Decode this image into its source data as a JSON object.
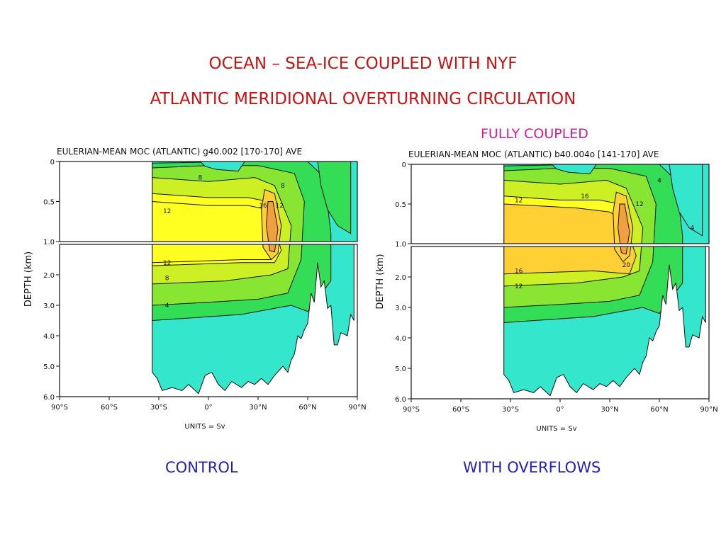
{
  "header": {
    "title": "OCEAN – SEA-ICE COUPLED WITH NYF",
    "subtitle": "ATLANTIC MERIDIONAL OVERTURNING CIRCULATION",
    "right_note": "FULLY COUPLED"
  },
  "colors": {
    "title": "#cc1111",
    "note": "#e0188c",
    "caption": "#2222b8",
    "band_cyan": "#33e6cc",
    "band_green": "#33dd55",
    "band_lightgreen": "#88e633",
    "band_yellowgreen": "#ccf024",
    "band_yellow": "#ffff22",
    "band_gold": "#ffd033",
    "band_orange": "#f0a040"
  },
  "captions": {
    "left": "CONTROL",
    "right": "WITH OVERFLOWS"
  },
  "chart_data": [
    {
      "type": "heatmap",
      "title": "EULERIAN-MEAN MOC (ATLANTIC) g40.002 [170-170] AVE",
      "xlabel": "",
      "ylabel": "DEPTH (km)",
      "units_note": "UNITS = Sv",
      "x_ticks": [
        "90°S",
        "60°S",
        "30°S",
        "0°",
        "30°N",
        "60°N",
        "90°N"
      ],
      "y_ticks_upper": [
        "0",
        "0.5",
        "1.0"
      ],
      "y_ticks_lower": [
        "1.0",
        "2.0",
        "3.0",
        "4.0",
        "5.0",
        "6.0"
      ],
      "xlim": [
        -90,
        90
      ],
      "ylim": [
        6.0,
        0
      ],
      "contour_levels": [
        -4,
        0,
        4,
        8,
        12,
        16
      ],
      "contour_labels": [
        {
          "text": "8",
          "lat": -5,
          "depth": 0.2
        },
        {
          "text": "12",
          "lat": -25,
          "depth": 0.62
        },
        {
          "text": "16",
          "lat": 33,
          "depth": 0.55
        },
        {
          "text": "8",
          "lat": 45,
          "depth": 0.3
        },
        {
          "text": "12",
          "lat": 43,
          "depth": 0.55
        },
        {
          "text": "12",
          "lat": -25,
          "depth": 1.6
        },
        {
          "text": "8",
          "lat": -25,
          "depth": 2.1
        },
        {
          "text": "4",
          "lat": -25,
          "depth": 3.0
        }
      ]
    },
    {
      "type": "heatmap",
      "title": "EULERIAN-MEAN MOC (ATLANTIC) b40.004o [141-170] AVE",
      "xlabel": "",
      "ylabel": "DEPTH (km)",
      "units_note": "UNITS = Sv",
      "x_ticks": [
        "90°S",
        "60°S",
        "30°S",
        "0°",
        "30°N",
        "60°N",
        "90°N"
      ],
      "y_ticks_upper": [
        "0",
        "0.5",
        "1.0"
      ],
      "y_ticks_lower": [
        "1.0",
        "2.0",
        "3.0",
        "4.0",
        "5.0",
        "6.0"
      ],
      "xlim": [
        -90,
        90
      ],
      "ylim": [
        6.0,
        0
      ],
      "contour_levels": [
        -4,
        0,
        4,
        8,
        12,
        16,
        20
      ],
      "contour_labels": [
        {
          "text": "12",
          "lat": -25,
          "depth": 0.45
        },
        {
          "text": "16",
          "lat": 15,
          "depth": 0.4
        },
        {
          "text": "12",
          "lat": 48,
          "depth": 0.5
        },
        {
          "text": "4",
          "lat": 60,
          "depth": 0.2
        },
        {
          "text": "4",
          "lat": 80,
          "depth": 0.8
        },
        {
          "text": "20",
          "lat": 40,
          "depth": 1.6
        },
        {
          "text": "16",
          "lat": -25,
          "depth": 1.8
        },
        {
          "text": "12",
          "lat": -25,
          "depth": 2.3
        }
      ]
    }
  ]
}
